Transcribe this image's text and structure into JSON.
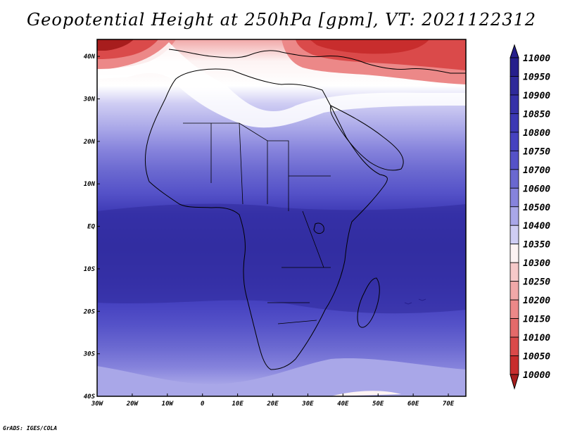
{
  "title": "Geopotential Height at 250hPa [gpm], VT: 2021122312",
  "credit": "GrADS: IGES/COLA",
  "map": {
    "lon_labels": [
      "30W",
      "20W",
      "10W",
      "0",
      "10E",
      "20E",
      "30E",
      "40E",
      "50E",
      "60E",
      "70E"
    ],
    "lat_labels": [
      "40N",
      "30N",
      "20N",
      "10N",
      "EQ",
      "10S",
      "20S",
      "30S",
      "40S"
    ],
    "lon_range": [
      -30,
      75
    ],
    "lat_range": [
      -40,
      44
    ]
  },
  "colorbar": {
    "levels": [
      "11000",
      "10950",
      "10900",
      "10850",
      "10800",
      "10750",
      "10700",
      "10600",
      "10500",
      "10400",
      "10350",
      "10300",
      "10250",
      "10200",
      "10150",
      "10100",
      "10050",
      "10000"
    ],
    "colors": [
      "#261f8c",
      "#2f2a9a",
      "#3631a8",
      "#3c38b4",
      "#4642c0",
      "#5552c8",
      "#6a68d0",
      "#8683dc",
      "#a9a7e8",
      "#cfcdf3",
      "#fdf3f3",
      "#f6c9c9",
      "#f1a8a8",
      "#ec8888",
      "#e46a6a",
      "#da4a4a",
      "#c82d2d",
      "#a71d1d"
    ]
  },
  "chart_data": {
    "type": "heatmap",
    "title": "Geopotential Height at 250hPa [gpm], VT: 2021122312",
    "variable": "Geopotential Height at 250hPa",
    "units": "gpm",
    "valid_time": "2021122312",
    "x_ticks": [
      "30W",
      "20W",
      "10W",
      "0",
      "10E",
      "20E",
      "30E",
      "40E",
      "50E",
      "60E",
      "70E"
    ],
    "y_ticks": [
      "40N",
      "30N",
      "20N",
      "10N",
      "EQ",
      "10S",
      "20S",
      "30S",
      "40S"
    ],
    "color_levels": [
      10000,
      10050,
      10100,
      10150,
      10200,
      10250,
      10300,
      10350,
      10400,
      10500,
      10600,
      10700,
      10750,
      10800,
      10850,
      10900,
      10950,
      11000
    ],
    "zonal_bands": [
      {
        "lat": 42,
        "value": 10250
      },
      {
        "lat": 36,
        "value": 10450
      },
      {
        "lat": 30,
        "value": 10600
      },
      {
        "lat": 25,
        "value": 10700
      },
      {
        "lat": 20,
        "value": 10800
      },
      {
        "lat": 15,
        "value": 10850
      },
      {
        "lat": 10,
        "value": 10900
      },
      {
        "lat": 0,
        "value": 10950
      },
      {
        "lat": -10,
        "value": 10950
      },
      {
        "lat": -18,
        "value": 10900
      },
      {
        "lat": -22,
        "value": 10850
      },
      {
        "lat": -27,
        "value": 10800
      },
      {
        "lat": -31,
        "value": 10700
      },
      {
        "lat": -35,
        "value": 10600
      },
      {
        "lat": -39,
        "value": 10500
      }
    ]
  }
}
